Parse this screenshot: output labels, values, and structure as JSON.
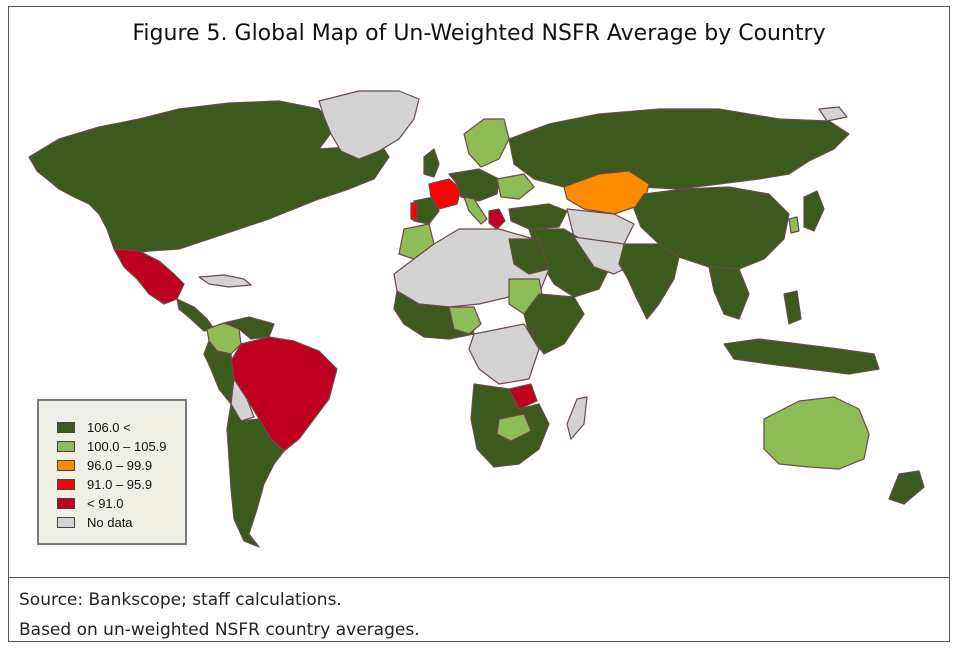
{
  "figure": {
    "title": "Figure 5. Global Map of Un-Weighted NSFR Average by Country"
  },
  "legend": {
    "items": [
      {
        "label": "106.0 <",
        "color": "#3d5a1e"
      },
      {
        "label": "100.0 – 105.9",
        "color": "#8fbd55"
      },
      {
        "label": "96.0 – 99.9",
        "color": "#ff8c00"
      },
      {
        "label": "91.0 – 95.9",
        "color": "#ff0000"
      },
      {
        "label": "< 91.0",
        "color": "#c00020"
      },
      {
        "label": "No data",
        "color": "#d3d3d3"
      }
    ]
  },
  "source": {
    "line1": "Source: Bankscope; staff calculations.",
    "line2": "Based on un-weighted NSFR country averages."
  },
  "colors": {
    "ocean": "#ffffff",
    "border": "#6b4a4a",
    "frame": "#555555"
  }
}
